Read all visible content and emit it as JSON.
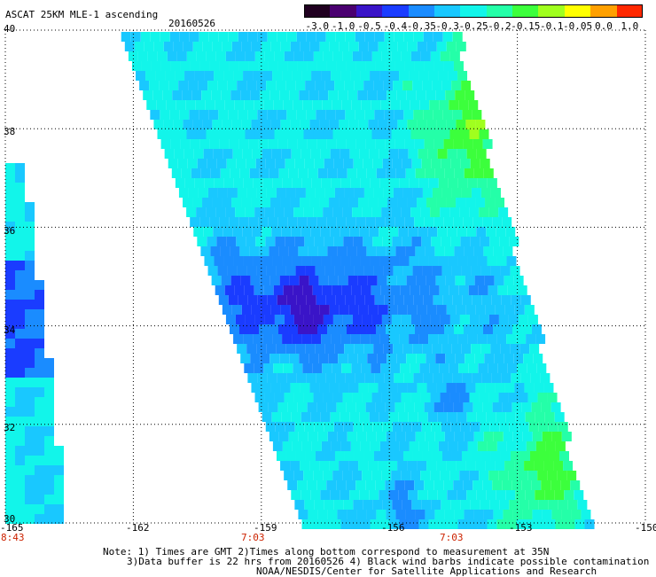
{
  "header": {
    "title": "ASCAT 25KM MLE-1 ascending",
    "date": "20160526"
  },
  "colorbar": {
    "labels": [
      "-3.0",
      "-1.0",
      "-0.5",
      "-0.4",
      "-0.35",
      "-0.3",
      "-0.25",
      "-0.2",
      "-0.15",
      "-0.1",
      "-0.05",
      "0.0",
      "1.0"
    ],
    "colors": [
      "#200020",
      "#4a0070",
      "#3a14c8",
      "#1a3cff",
      "#1a8cff",
      "#19c8ff",
      "#12f5ea",
      "#24ffa8",
      "#3cff3c",
      "#a0ff1e",
      "#ffff00",
      "#ffa000",
      "#ff2800"
    ]
  },
  "map": {
    "lat_labels": [
      "40",
      "38",
      "36",
      "34",
      "32",
      "30"
    ],
    "lon_labels": [
      "-165",
      "-162",
      "-159",
      "-156",
      "-153",
      "-150"
    ],
    "lat_range": [
      30,
      40
    ],
    "lon_range": [
      -165,
      -150
    ],
    "pass_times": [
      {
        "label": "8:43",
        "lon": -165
      },
      {
        "label": "7:03",
        "lon": -159
      },
      {
        "label": "7:03",
        "lon": -154
      }
    ]
  },
  "footer": {
    "line1": "Note: 1) Times are GMT 2)Times along bottom correspond to measurement at 35N",
    "line2": "3)Data buffer is 22 hrs from 20160526 4) Black wind barbs indicate possible contamination",
    "line3": "NOAA/NESDIS/Center for Satellite Applications and Research"
  }
}
